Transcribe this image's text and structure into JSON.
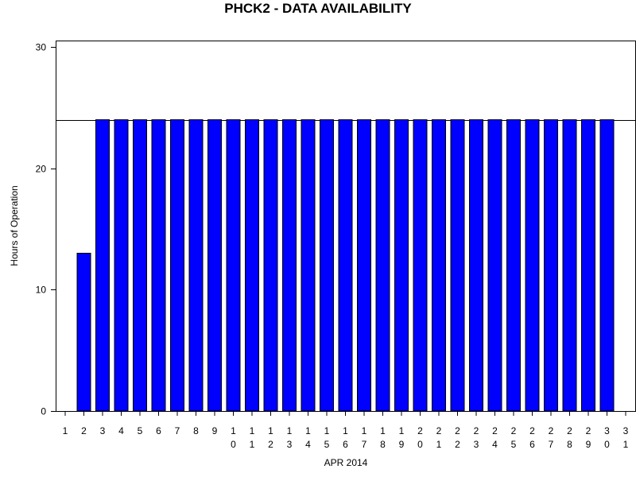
{
  "chart_data": {
    "type": "bar",
    "title": "PHCK2 - DATA AVAILABILITY",
    "xlabel": "APR 2014",
    "ylabel": "Hours of Operation",
    "ylim": [
      0,
      30
    ],
    "yticks": [
      0,
      10,
      20,
      30
    ],
    "reference_line": 24,
    "categories": [
      "1",
      "2",
      "3",
      "4",
      "5",
      "6",
      "7",
      "8",
      "9",
      "10",
      "11",
      "12",
      "13",
      "14",
      "15",
      "16",
      "17",
      "18",
      "19",
      "20",
      "21",
      "22",
      "23",
      "24",
      "25",
      "26",
      "27",
      "28",
      "29",
      "30",
      "31"
    ],
    "values": [
      0,
      13,
      24,
      24,
      24,
      24,
      24,
      24,
      24,
      24,
      24,
      24,
      24,
      24,
      24,
      24,
      24,
      24,
      24,
      24,
      24,
      24,
      24,
      24,
      24,
      24,
      24,
      24,
      24,
      24,
      0
    ],
    "bar_color": "#0000ff",
    "bar_edge_color": "#000000",
    "grid": false
  }
}
